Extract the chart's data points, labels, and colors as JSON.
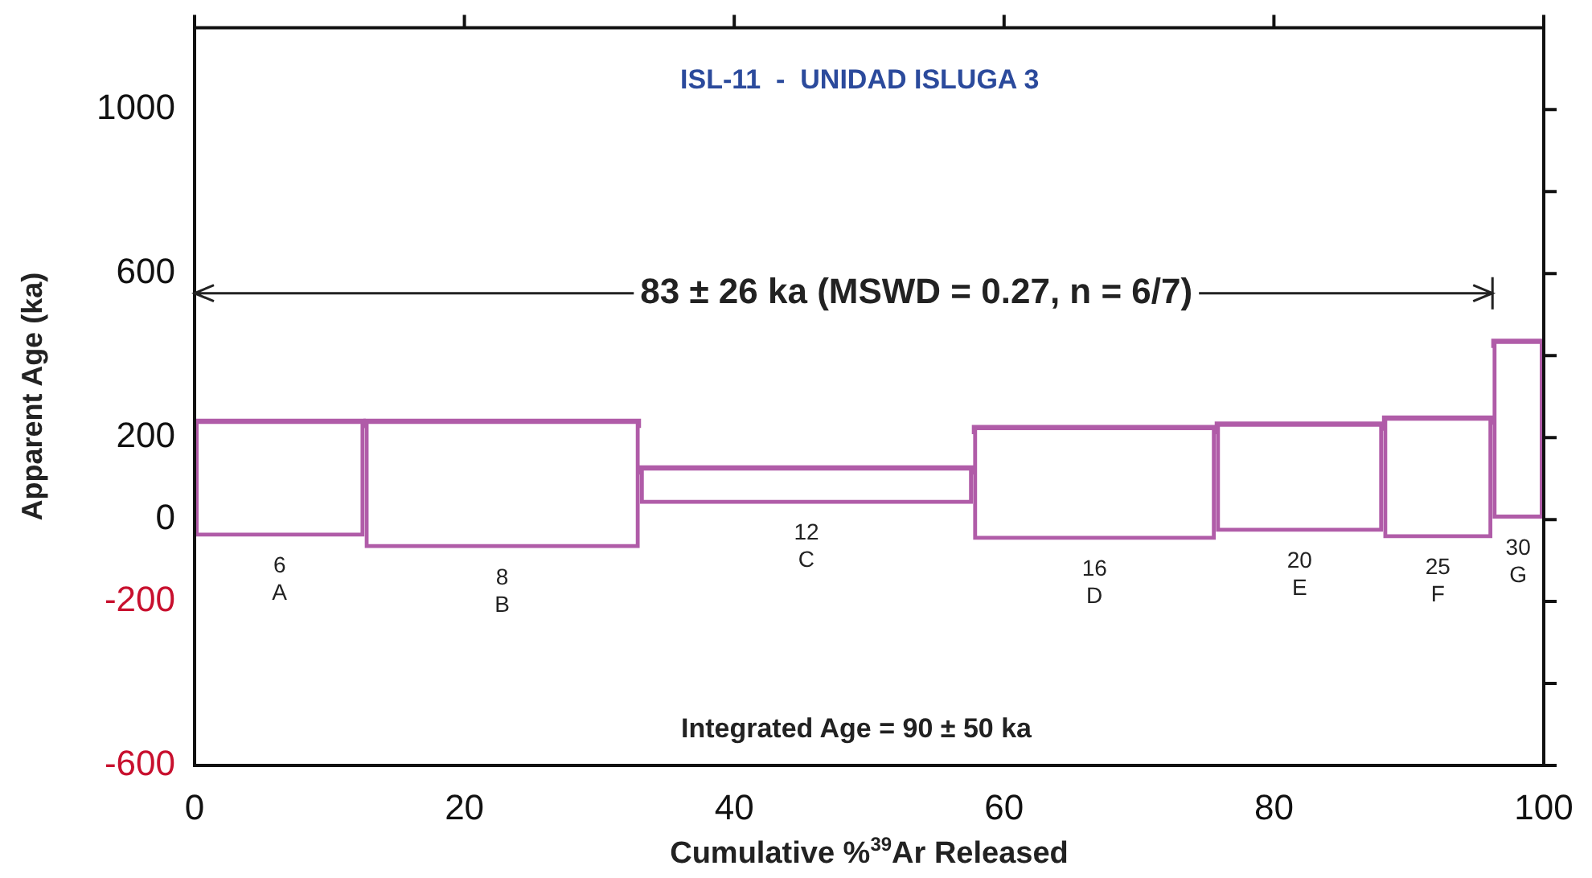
{
  "chart_data": {
    "type": "bar",
    "x": [
      6.3,
      22.8,
      45.35,
      66.7,
      81.9,
      92.15,
      98.1
    ],
    "title": "ISL-11  -  UNIDAD ISLUGA 3",
    "xlabel": "Cumulative %$^{39}$Ar Released",
    "ylabel": "Apparent Age (ka)",
    "xerrors": [
      [
        0,
        12.6
      ],
      [
        12.6,
        33.0
      ],
      [
        33.0,
        57.7
      ],
      [
        57.7,
        75.7
      ],
      [
        75.7,
        88.1
      ],
      [
        88.1,
        96.2
      ],
      [
        96.2,
        100
      ]
    ],
    "base": [
      -42,
      -70,
      38,
      -50,
      -30,
      -46,
      2
    ],
    "values": [
      285,
      313,
      91,
      278,
      266,
      297,
      436
    ],
    "color": "#b05ca8",
    "xlim": [
      0,
      100
    ],
    "xticks": [
      0,
      20,
      40,
      60,
      80,
      100
    ],
    "ylim": [
      -600,
      1200
    ],
    "yticks": [
      -600,
      {
        "value": -400,
        "label": null
      },
      -200,
      0,
      200,
      {
        "value": 400,
        "label": null
      },
      600,
      {
        "value": 800,
        "label": null
      },
      1000
    ],
    "annotations": [
      "83 ± 26 ka (MSWD = 0.27, n = 6/7)",
      "Integrated Age = 90 ± 50 ka",
      "6\nA",
      "8\nB",
      "12\nC",
      "16\nD",
      "20\nE",
      "25\nF",
      "30\nG"
    ],
    "grid": false,
    "legend": false
  }
}
